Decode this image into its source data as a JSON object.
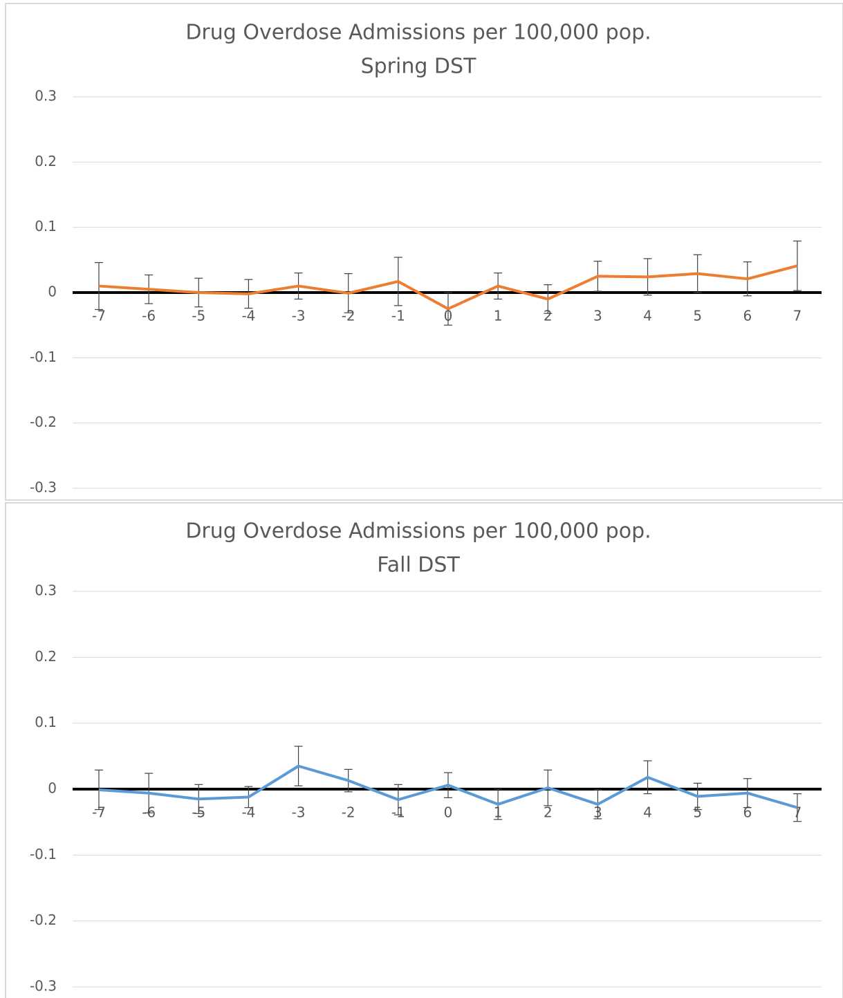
{
  "chart_data": [
    {
      "type": "line",
      "title": "Drug Overdose Admissions per 100,000 pop.",
      "subtitle": "Spring DST",
      "categories": [
        "-7",
        "-6",
        "-5",
        "-4",
        "-3",
        "-2",
        "-1",
        "0",
        "1",
        "2",
        "3",
        "4",
        "5",
        "6",
        "7"
      ],
      "series": [
        {
          "name": "Spring DST",
          "color": "#ed7d31",
          "values": [
            0.01,
            0.005,
            0,
            -0.002,
            0.01,
            -0.001,
            0.017,
            -0.025,
            0.01,
            -0.01,
            0.025,
            0.024,
            0.029,
            0.021,
            0.041
          ],
          "errors": [
            0.036,
            0.022,
            0.022,
            0.022,
            0.02,
            0.03,
            0.037,
            0.025,
            0.02,
            0.022,
            0.023,
            0.028,
            0.029,
            0.026,
            0.038
          ]
        }
      ],
      "ylim": [
        -0.3,
        0.3
      ],
      "yticks": [
        0.3,
        0.2,
        0.1,
        0,
        -0.1,
        -0.2,
        -0.3
      ],
      "grid": true
    },
    {
      "type": "line",
      "title": "Drug Overdose Admissions per 100,000 pop.",
      "subtitle": "Fall DST",
      "categories": [
        "-7",
        "-6",
        "-5",
        "-4",
        "-3",
        "-2",
        "-1",
        "0",
        "1",
        "2",
        "3",
        "4",
        "5",
        "6",
        "7"
      ],
      "series": [
        {
          "name": "Fall DST",
          "color": "#5b9bd5",
          "values": [
            -0.001,
            -0.006,
            -0.015,
            -0.012,
            0.035,
            0.013,
            -0.016,
            0.006,
            -0.023,
            0.002,
            -0.023,
            0.018,
            -0.011,
            -0.006,
            -0.028
          ],
          "errors": [
            0.03,
            0.03,
            0.022,
            0.016,
            0.03,
            0.017,
            0.023,
            0.019,
            0.023,
            0.027,
            0.022,
            0.025,
            0.02,
            0.022,
            0.021
          ]
        }
      ],
      "ylim": [
        -0.3,
        0.3
      ],
      "yticks": [
        0.3,
        0.2,
        0.1,
        0,
        -0.1,
        -0.2,
        -0.3
      ],
      "grid": true
    }
  ]
}
